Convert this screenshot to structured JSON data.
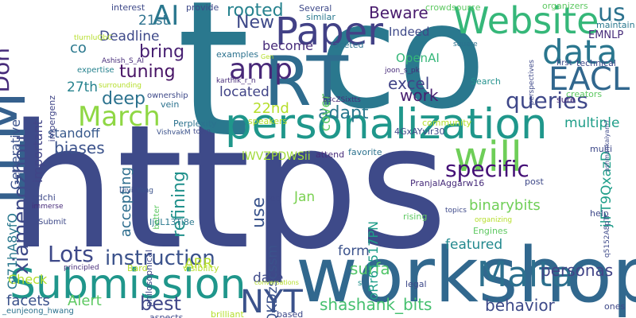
{
  "background": "#ffffff",
  "palette": [
    "#440154",
    "#472c7a",
    "#3b518b",
    "#2c718e",
    "#21908d",
    "#27ad81",
    "#5cc863",
    "#aadc32",
    "#fde725"
  ],
  "words": [
    {
      "text": "https",
      "color": "#3e4a89"
    },
    {
      "text": "t",
      "color": "#2a788e"
    },
    {
      "text": "co",
      "color": "#2a788e"
    },
    {
      "text": "workshop",
      "color": "#31688e"
    },
    {
      "text": "RT",
      "color": "#2f6c8e"
    },
    {
      "text": "LLM",
      "color": "#35608d"
    },
    {
      "text": "personalization",
      "color": "#1f978b"
    },
    {
      "text": "Submission",
      "color": "#1f968b"
    },
    {
      "text": "Paper",
      "color": "#424186"
    },
    {
      "text": "Website",
      "color": "#35b779"
    },
    {
      "text": "will",
      "color": "#6ece58"
    },
    {
      "text": "Malta",
      "color": "#2d708e"
    },
    {
      "text": "data",
      "color": "#2a768e"
    },
    {
      "text": "EACL",
      "color": "#31678e"
    },
    {
      "text": "NYT",
      "color": "#3b528b"
    },
    {
      "text": "AI",
      "color": "#2a778e"
    },
    {
      "text": "amp",
      "color": "#482878"
    },
    {
      "text": "March",
      "color": "#8fd744"
    },
    {
      "text": "queries",
      "color": "#3f4889"
    },
    {
      "text": "specific",
      "color": "#440f76"
    },
    {
      "text": "Lots",
      "color": "#3e4989"
    },
    {
      "text": "instruction",
      "color": "#3b528b"
    },
    {
      "text": "us",
      "color": "#2c728e"
    },
    {
      "text": "Don",
      "color": "#472c7a"
    },
    {
      "text": "xiamengzhou",
      "color": "#3e4a89"
    },
    {
      "text": "rooted",
      "color": "#26828e"
    },
    {
      "text": "New",
      "color": "#3e4989"
    },
    {
      "text": "Beware",
      "color": "#481b6d"
    },
    {
      "text": "bring",
      "color": "#482173"
    },
    {
      "text": "tuning",
      "color": "#471365"
    },
    {
      "text": "deep",
      "color": "#2c728e"
    },
    {
      "text": "adapt",
      "color": "#2a788e"
    },
    {
      "text": "refining",
      "color": "#21918c"
    },
    {
      "text": "use",
      "color": "#3a548c"
    },
    {
      "text": "excel",
      "color": "#414487"
    },
    {
      "text": "work",
      "color": "#481f70"
    },
    {
      "text": "best",
      "color": "#404688"
    },
    {
      "text": "Alert",
      "color": "#5ec962"
    },
    {
      "text": "facets",
      "color": "#3b528b"
    },
    {
      "text": "surfa",
      "color": "#52c569"
    },
    {
      "text": "shashank_bits",
      "color": "#46c06f"
    },
    {
      "text": "behavior",
      "color": "#3e4a89"
    },
    {
      "text": "personas",
      "color": "#414487"
    },
    {
      "text": "featured",
      "color": "#23898e"
    },
    {
      "text": "form",
      "color": "#3b528b"
    },
    {
      "text": "multiple",
      "color": "#1f9e89"
    },
    {
      "text": "binarybits",
      "color": "#70cf57"
    },
    {
      "text": "biases",
      "color": "#3b528b"
    },
    {
      "text": "standoff",
      "color": "#38598c"
    },
    {
      "text": "accepting",
      "color": "#2e6e8e"
    },
    {
      "text": "ARR",
      "color": "#b5de2b"
    },
    {
      "text": "date",
      "color": "#3e4989"
    },
    {
      "text": "Check",
      "color": "#b5de2b"
    },
    {
      "text": "Deadline",
      "color": "#3e4989"
    },
    {
      "text": "21st",
      "color": "#2c728e"
    },
    {
      "text": "27th",
      "color": "#26828e"
    },
    {
      "text": "22nd",
      "color": "#b5de2b"
    },
    {
      "text": "Jan",
      "color": "#7ad151"
    },
    {
      "text": "Indeed",
      "color": "#3e4989"
    },
    {
      "text": "OpenAI",
      "color": "#35b779"
    },
    {
      "text": "become",
      "color": "#472c7a"
    },
    {
      "text": "located",
      "color": "#414487"
    },
    {
      "text": "cover",
      "color": "#5ec962"
    },
    {
      "text": "Generative",
      "color": "#3b528b"
    },
    {
      "text": "important",
      "color": "#414487"
    },
    {
      "text": "Gi71hA8yfO",
      "color": "#2a788e"
    },
    {
      "text": "aQKDzscssm",
      "color": "#3b528b"
    },
    {
      "text": "oRr6T517PN",
      "color": "#1f9e89"
    },
    {
      "text": "jlFT9QxazD",
      "color": "#1f9e89"
    },
    {
      "text": "lWVZPDWSii",
      "color": "#a0da39"
    },
    {
      "text": "EMNLP",
      "color": "#472c7a"
    },
    {
      "text": "impergenz",
      "color": "#404688"
    },
    {
      "text": "interest",
      "color": "#3e4989"
    },
    {
      "text": "provide",
      "color": "#3e4989"
    },
    {
      "text": "Several",
      "color": "#3e4989"
    },
    {
      "text": "similar",
      "color": "#2a788e"
    },
    {
      "text": "crowdsource",
      "color": "#5ec962"
    },
    {
      "text": "organizers",
      "color": "#5ec962"
    },
    {
      "text": "maintain",
      "color": "#2a788e"
    },
    {
      "text": "faceted",
      "color": "#2c728e"
    },
    {
      "text": "square",
      "color": "#2c728e"
    },
    {
      "text": "perspectives",
      "color": "#3e4989"
    },
    {
      "text": "first",
      "color": "#3e4989"
    },
    {
      "text": "technical",
      "color": "#3e4989"
    },
    {
      "text": "Search",
      "color": "#21918c"
    },
    {
      "text": "creators",
      "color": "#5ec962"
    },
    {
      "text": "sure",
      "color": "#472c7a"
    },
    {
      "text": "ashmankaiyam7",
      "color": "#3e4989"
    },
    {
      "text": "co",
      "color": "#2a788e"
    },
    {
      "text": "Gen",
      "color": "#b5de2b"
    },
    {
      "text": "examples",
      "color": "#2c728e"
    },
    {
      "text": "expertise",
      "color": "#26828e"
    },
    {
      "text": "surrounding",
      "color": "#b5de2b"
    },
    {
      "text": "ownership",
      "color": "#3e4989"
    },
    {
      "text": "vein",
      "color": "#2c728e"
    },
    {
      "text": "karthik_r_n",
      "color": "#472c7a"
    },
    {
      "text": "b3cZSixtts",
      "color": "#472c7a"
    },
    {
      "text": "joon_s_pk",
      "color": "#472c7a"
    },
    {
      "text": "Ashish_S_AI",
      "color": "#472c7a"
    },
    {
      "text": "tIurnluQbC",
      "color": "#b5de2b"
    },
    {
      "text": "speakers",
      "color": "#b5de2b"
    },
    {
      "text": "town",
      "color": "#3e4989"
    },
    {
      "text": "Perplexity",
      "color": "#2c728e"
    },
    {
      "text": "VishvakM",
      "color": "#3b528b"
    },
    {
      "text": "community",
      "color": "#b5de2b"
    },
    {
      "text": "4GxAYvir30",
      "color": "#3e4989"
    },
    {
      "text": "attend",
      "color": "#472c7a"
    },
    {
      "text": "favorite",
      "color": "#2c728e"
    },
    {
      "text": "multi",
      "color": "#3e4989"
    },
    {
      "text": "PranjalAggarw16",
      "color": "#472c7a"
    },
    {
      "text": "post",
      "color": "#3e4989"
    },
    {
      "text": "rising",
      "color": "#5ec962"
    },
    {
      "text": "topics",
      "color": "#3e4989"
    },
    {
      "text": "organizing",
      "color": "#b5de2b"
    },
    {
      "text": "Engines",
      "color": "#5ec962"
    },
    {
      "text": "help",
      "color": "#3e4989"
    },
    {
      "text": "q5152A8pTr",
      "color": "#3e4989"
    },
    {
      "text": "set",
      "color": "#3e4989"
    },
    {
      "text": "edchi",
      "color": "#3e4989"
    },
    {
      "text": "immerse",
      "color": "#472c7a"
    },
    {
      "text": "Submit",
      "color": "#3e4989"
    },
    {
      "text": "Diyi_Yang",
      "color": "#3b528b"
    },
    {
      "text": "IjdL13Ti8e",
      "color": "#2a788e"
    },
    {
      "text": "better",
      "color": "#5ec962"
    },
    {
      "text": "philosophical",
      "color": "#3e4989"
    },
    {
      "text": "principled",
      "color": "#472c7a"
    },
    {
      "text": "Bard",
      "color": "#b5de2b"
    },
    {
      "text": "visibility",
      "color": "#b5de2b"
    },
    {
      "text": "conversations",
      "color": "#b5de2b"
    },
    {
      "text": "s",
      "color": "#21918c"
    },
    {
      "text": "legal",
      "color": "#3e4989"
    },
    {
      "text": "ones",
      "color": "#3e4989"
    },
    {
      "text": "_eunjeong_hwang",
      "color": "#2c728e"
    },
    {
      "text": "brilliant",
      "color": "#b5de2b"
    },
    {
      "text": "based",
      "color": "#3e4989"
    },
    {
      "text": "aspects",
      "color": "#3e4989"
    }
  ]
}
